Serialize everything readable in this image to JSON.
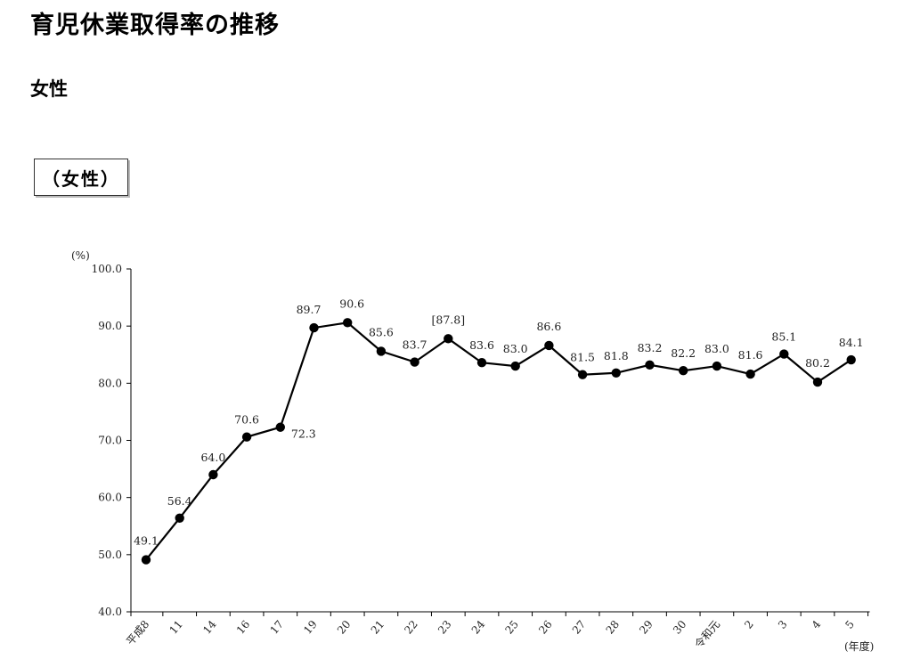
{
  "title": "育児休業取得率の推移",
  "section": "女性",
  "boxed_label": "（女性）",
  "chart_data": {
    "type": "line",
    "title": "",
    "ylabel": "(%)",
    "xlabel": "(年度)",
    "ylim": [
      40,
      100
    ],
    "y_ticks": [
      "40.0",
      "50.0",
      "60.0",
      "70.0",
      "80.0",
      "90.0",
      "100.0"
    ],
    "categories": [
      "平成8",
      "11",
      "14",
      "16",
      "17",
      "19",
      "20",
      "21",
      "22",
      "23",
      "24",
      "25",
      "26",
      "27",
      "28",
      "29",
      "30",
      "令和元",
      "2",
      "3",
      "4",
      "5"
    ],
    "values": [
      49.1,
      56.4,
      64.0,
      70.6,
      72.3,
      89.7,
      90.6,
      85.6,
      83.7,
      87.8,
      83.6,
      83.0,
      86.6,
      81.5,
      81.8,
      83.2,
      82.2,
      83.0,
      81.6,
      85.1,
      80.2,
      84.1
    ],
    "data_labels": [
      "49.1",
      "56.4",
      "64.0",
      "70.6",
      "72.3",
      "89.7",
      "90.6",
      "85.6",
      "83.7",
      "[87.8]",
      "83.6",
      "83.0",
      "86.6",
      "81.5",
      "81.8",
      "83.2",
      "82.2",
      "83.0",
      "81.6",
      "85.1",
      "80.2",
      "84.1"
    ],
    "grid": false,
    "legend": "none",
    "line_color": "#000000"
  }
}
